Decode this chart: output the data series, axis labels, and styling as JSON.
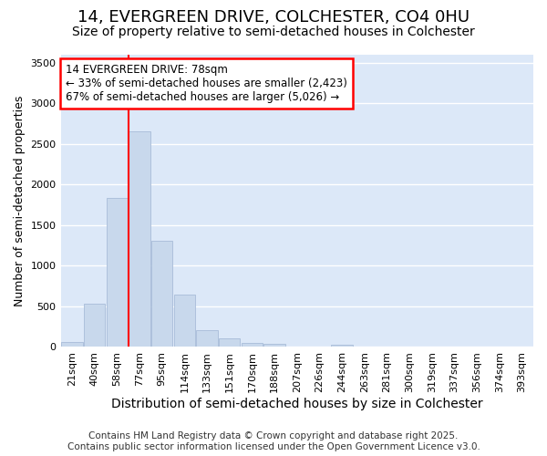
{
  "title": "14, EVERGREEN DRIVE, COLCHESTER, CO4 0HU",
  "subtitle": "Size of property relative to semi-detached houses in Colchester",
  "xlabel": "Distribution of semi-detached houses by size in Colchester",
  "ylabel": "Number of semi-detached properties",
  "categories": [
    "21sqm",
    "40sqm",
    "58sqm",
    "77sqm",
    "95sqm",
    "114sqm",
    "133sqm",
    "151sqm",
    "170sqm",
    "188sqm",
    "207sqm",
    "226sqm",
    "244sqm",
    "263sqm",
    "281sqm",
    "300sqm",
    "319sqm",
    "337sqm",
    "356sqm",
    "374sqm",
    "393sqm"
  ],
  "values": [
    65,
    530,
    1840,
    2660,
    1310,
    640,
    210,
    105,
    45,
    35,
    0,
    0,
    25,
    0,
    0,
    0,
    0,
    0,
    0,
    0,
    0
  ],
  "bar_color": "#c8d8ec",
  "bar_edge_color": "#a8bcd8",
  "red_line_x": 3,
  "annotation_line1": "14 EVERGREEN DRIVE: 78sqm",
  "annotation_line2": "← 33% of semi-detached houses are smaller (2,423)",
  "annotation_line3": "67% of semi-detached houses are larger (5,026) →",
  "annotation_box_color": "white",
  "annotation_box_edge_color": "red",
  "ylim": [
    0,
    3600
  ],
  "yticks": [
    0,
    500,
    1000,
    1500,
    2000,
    2500,
    3000,
    3500
  ],
  "figure_bg": "white",
  "plot_bg_color": "#dce8f8",
  "grid_color": "white",
  "title_fontsize": 13,
  "subtitle_fontsize": 10,
  "xlabel_fontsize": 10,
  "ylabel_fontsize": 9,
  "tick_fontsize": 8,
  "annotation_fontsize": 8.5,
  "footer_fontsize": 7.5,
  "footer_line1": "Contains HM Land Registry data © Crown copyright and database right 2025.",
  "footer_line2": "Contains public sector information licensed under the Open Government Licence v3.0."
}
